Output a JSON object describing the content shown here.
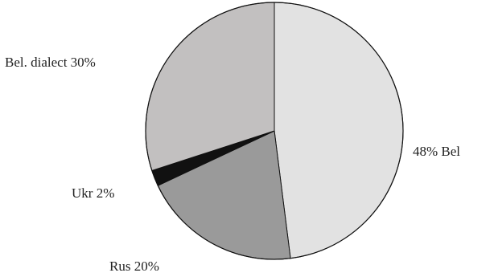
{
  "chart_data": {
    "type": "pie",
    "slices": [
      {
        "label": "Bel",
        "value": 48,
        "color": "#e2e2e2",
        "display": "48% Bel"
      },
      {
        "label": "Rus",
        "value": 20,
        "color": "#9a9a9a",
        "display": "Rus 20%"
      },
      {
        "label": "Ukr",
        "value": 2,
        "color": "#111111",
        "display": "Ukr 2%"
      },
      {
        "label": "Bel. dialect",
        "value": 30,
        "color": "#c2c0c0",
        "display": "Bel. dialect 30%"
      }
    ],
    "start": "12 o'clock",
    "direction": "clockwise",
    "border_color": "#111111"
  }
}
